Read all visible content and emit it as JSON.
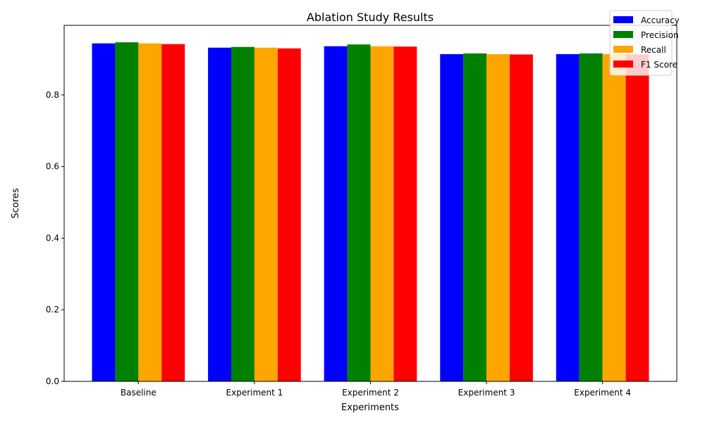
{
  "chart_data": {
    "type": "bar",
    "title": "Ablation Study Results",
    "xlabel": "Experiments",
    "ylabel": "Scores",
    "categories": [
      "Baseline",
      "Experiment 1",
      "Experiment 2",
      "Experiment 3",
      "Experiment 4"
    ],
    "series": [
      {
        "name": "Accuracy",
        "color": "#0000ff",
        "values": [
          0.944,
          0.932,
          0.936,
          0.914,
          0.914
        ]
      },
      {
        "name": "Precision",
        "color": "#008000",
        "values": [
          0.947,
          0.934,
          0.941,
          0.916,
          0.916
        ]
      },
      {
        "name": "Recall",
        "color": "#ffa500",
        "values": [
          0.944,
          0.932,
          0.936,
          0.914,
          0.914
        ]
      },
      {
        "name": "F1 Score",
        "color": "#ff0000",
        "values": [
          0.942,
          0.93,
          0.935,
          0.913,
          0.913
        ]
      }
    ],
    "ylim": [
      0,
      0.9944
    ],
    "yticks": [
      0.0,
      0.2,
      0.4,
      0.6,
      0.8
    ],
    "ytick_labels": [
      "0.0",
      "0.2",
      "0.4",
      "0.6",
      "0.8"
    ],
    "grid": false,
    "legend_position": "top-right"
  }
}
